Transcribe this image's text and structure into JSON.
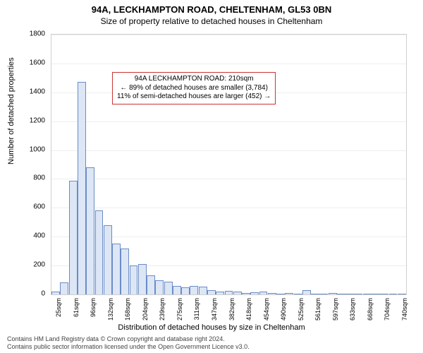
{
  "title": "94A, LECKHAMPTON ROAD, CHELTENHAM, GL53 0BN",
  "subtitle": "Size of property relative to detached houses in Cheltenham",
  "chart": {
    "type": "bar",
    "ylabel": "Number of detached properties",
    "xlabel": "Distribution of detached houses by size in Cheltenham",
    "ylim_max": 1800,
    "y_ticks": [
      0,
      200,
      400,
      600,
      800,
      1000,
      1200,
      1400,
      1600,
      1800
    ],
    "bar_fill": "#dce6f5",
    "bar_stroke": "#6a8cc7",
    "grid_color": "#eeeeee",
    "border_color": "#d0d0d0",
    "x_tick_labels": [
      "25sqm",
      "61sqm",
      "96sqm",
      "132sqm",
      "168sqm",
      "204sqm",
      "239sqm",
      "275sqm",
      "311sqm",
      "347sqm",
      "382sqm",
      "418sqm",
      "454sqm",
      "490sqm",
      "525sqm",
      "561sqm",
      "597sqm",
      "633sqm",
      "668sqm",
      "704sqm",
      "740sqm"
    ],
    "x_tick_every": 2,
    "values": [
      20,
      85,
      790,
      1470,
      880,
      580,
      480,
      350,
      320,
      200,
      210,
      130,
      100,
      90,
      60,
      50,
      60,
      55,
      30,
      20,
      25,
      20,
      10,
      15,
      18,
      10,
      5,
      10,
      5,
      28,
      5,
      5,
      10,
      5,
      3,
      2,
      5,
      3,
      2,
      2,
      3
    ]
  },
  "annotation": {
    "line1": "94A LECKHAMPTON ROAD: 210sqm",
    "line2": "← 89% of detached houses are smaller (3,784)",
    "line3": "11% of semi-detached houses are larger (452) →",
    "border_color": "#cc3333"
  },
  "footer": {
    "line1": "Contains HM Land Registry data © Crown copyright and database right 2024.",
    "line2": "Contains public sector information licensed under the Open Government Licence v3.0."
  }
}
